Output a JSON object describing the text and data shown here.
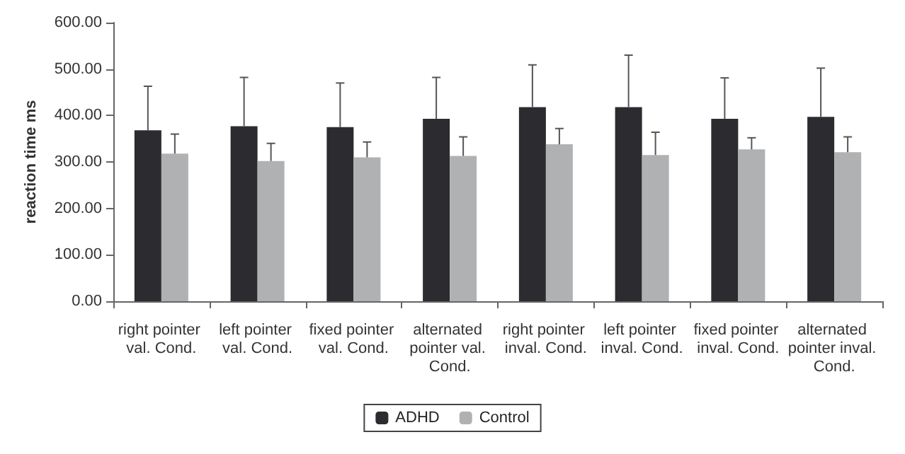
{
  "chart_data": {
    "type": "bar",
    "ylabel": "reaction time ms",
    "categories": [
      "right pointer val. Cond.",
      "left pointer val. Cond.",
      "fixed pointer val. Cond.",
      "alternated pointer val. Cond.",
      "right pointer inval. Cond.",
      "left pointer inval. Cond.",
      "fixed pointer inval. Cond.",
      "alternated pointer inval. Cond."
    ],
    "series": [
      {
        "name": "ADHD",
        "color": "#2b2b30",
        "values": [
          368,
          377,
          375,
          393,
          418,
          418,
          393,
          397
        ],
        "errors": [
          [
            368,
            463
          ],
          [
            377,
            482
          ],
          [
            375,
            470
          ],
          [
            393,
            482
          ],
          [
            418,
            509
          ],
          [
            418,
            530
          ],
          [
            393,
            481
          ],
          [
            397,
            502
          ]
        ]
      },
      {
        "name": "Control",
        "color": "#b0b1b3",
        "values": [
          318,
          302,
          310,
          313,
          338,
          315,
          327,
          321
        ],
        "errors": [
          [
            318,
            360
          ],
          [
            302,
            340
          ],
          [
            310,
            343
          ],
          [
            313,
            354
          ],
          [
            338,
            372
          ],
          [
            315,
            364
          ],
          [
            327,
            352
          ],
          [
            321,
            354
          ]
        ]
      }
    ],
    "ylim": [
      0,
      600
    ],
    "yticks": [
      {
        "value": 0,
        "label": "0.00"
      },
      {
        "value": 100,
        "label": "100.00"
      },
      {
        "value": 200,
        "label": "200.00"
      },
      {
        "value": 300,
        "label": "300.00"
      },
      {
        "value": 400,
        "label": "400.00"
      },
      {
        "value": 500,
        "label": "500.00"
      },
      {
        "value": 600,
        "label": "600.00"
      }
    ],
    "grid": false,
    "legend": "bottom"
  }
}
